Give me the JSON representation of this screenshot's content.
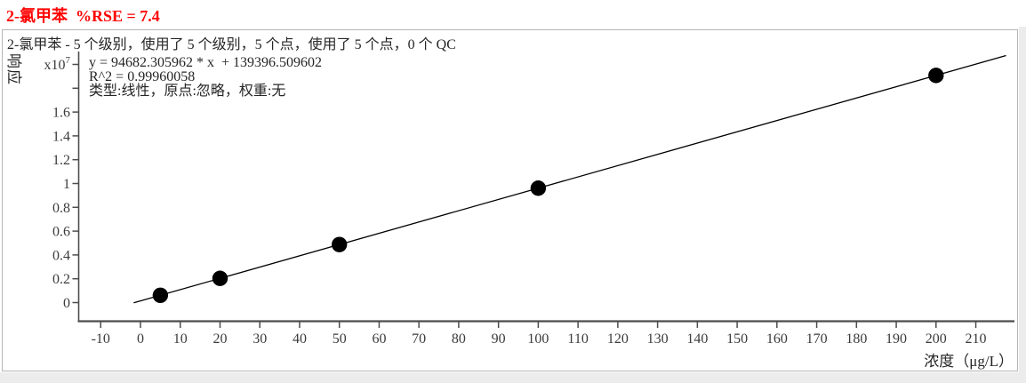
{
  "window": {
    "title_label": "2-氯甲苯  %RSE = 7.4",
    "title_color": "#ff0000"
  },
  "summary_line": "2-氯甲苯 - 5 个级别，使用了 5 个级别，5 个点，使用了 5 个点，0 个 QC",
  "fit_info": {
    "equation": "y = 94682.305962 * x  + 139396.509602",
    "r_squared": "R^2 = 0.99960058",
    "model_line": "类型:线性，原点:忽略，权重:无"
  },
  "chart_data": {
    "type": "scatter",
    "title": "2-氯甲苯",
    "xlabel": "浓度（μg/L）",
    "ylabel": "响应",
    "xlim": [
      -15.5,
      220
    ],
    "ylim": [
      -1500000,
      21200000
    ],
    "grid": false,
    "axis_color": "#4d4d4d",
    "tick_label_color": "#3b3b3b",
    "xticks": [
      -10,
      0,
      10,
      20,
      30,
      40,
      50,
      60,
      70,
      80,
      90,
      100,
      110,
      120,
      130,
      140,
      150,
      160,
      170,
      180,
      190,
      200,
      210
    ],
    "yticks": [
      {
        "value": 0,
        "label": "0"
      },
      {
        "value": 2000000,
        "label": "0.2"
      },
      {
        "value": 4000000,
        "label": "0.4"
      },
      {
        "value": 6000000,
        "label": "0.6"
      },
      {
        "value": 8000000,
        "label": "0.8"
      },
      {
        "value": 10000000,
        "label": "1"
      },
      {
        "value": 12000000,
        "label": "1.2"
      },
      {
        "value": 14000000,
        "label": "1.4"
      },
      {
        "value": 16000000,
        "label": "1.6"
      },
      {
        "value": 18000000,
        "label": ""
      },
      {
        "value": 20000000,
        "label": "x10",
        "sup": "7"
      }
    ],
    "points": {
      "x": [
        5,
        20,
        50,
        100,
        200
      ],
      "y": [
        612808,
        2033043,
        4873512,
        9607627,
        19075858
      ]
    },
    "fit": {
      "type": "线性",
      "origin": "忽略",
      "weight": "无",
      "slope": 94682.305962,
      "intercept": 139396.509602,
      "r2": 0.99960058,
      "rse_percent": 7.4,
      "levels": 5,
      "levels_used": 5,
      "points_count": 5,
      "points_used": 5,
      "qc_count": 0,
      "line_x_range": [
        -1.7,
        217.6
      ]
    },
    "marker": {
      "shape": "circle",
      "color": "#000000",
      "radius_px": 8.7
    }
  }
}
